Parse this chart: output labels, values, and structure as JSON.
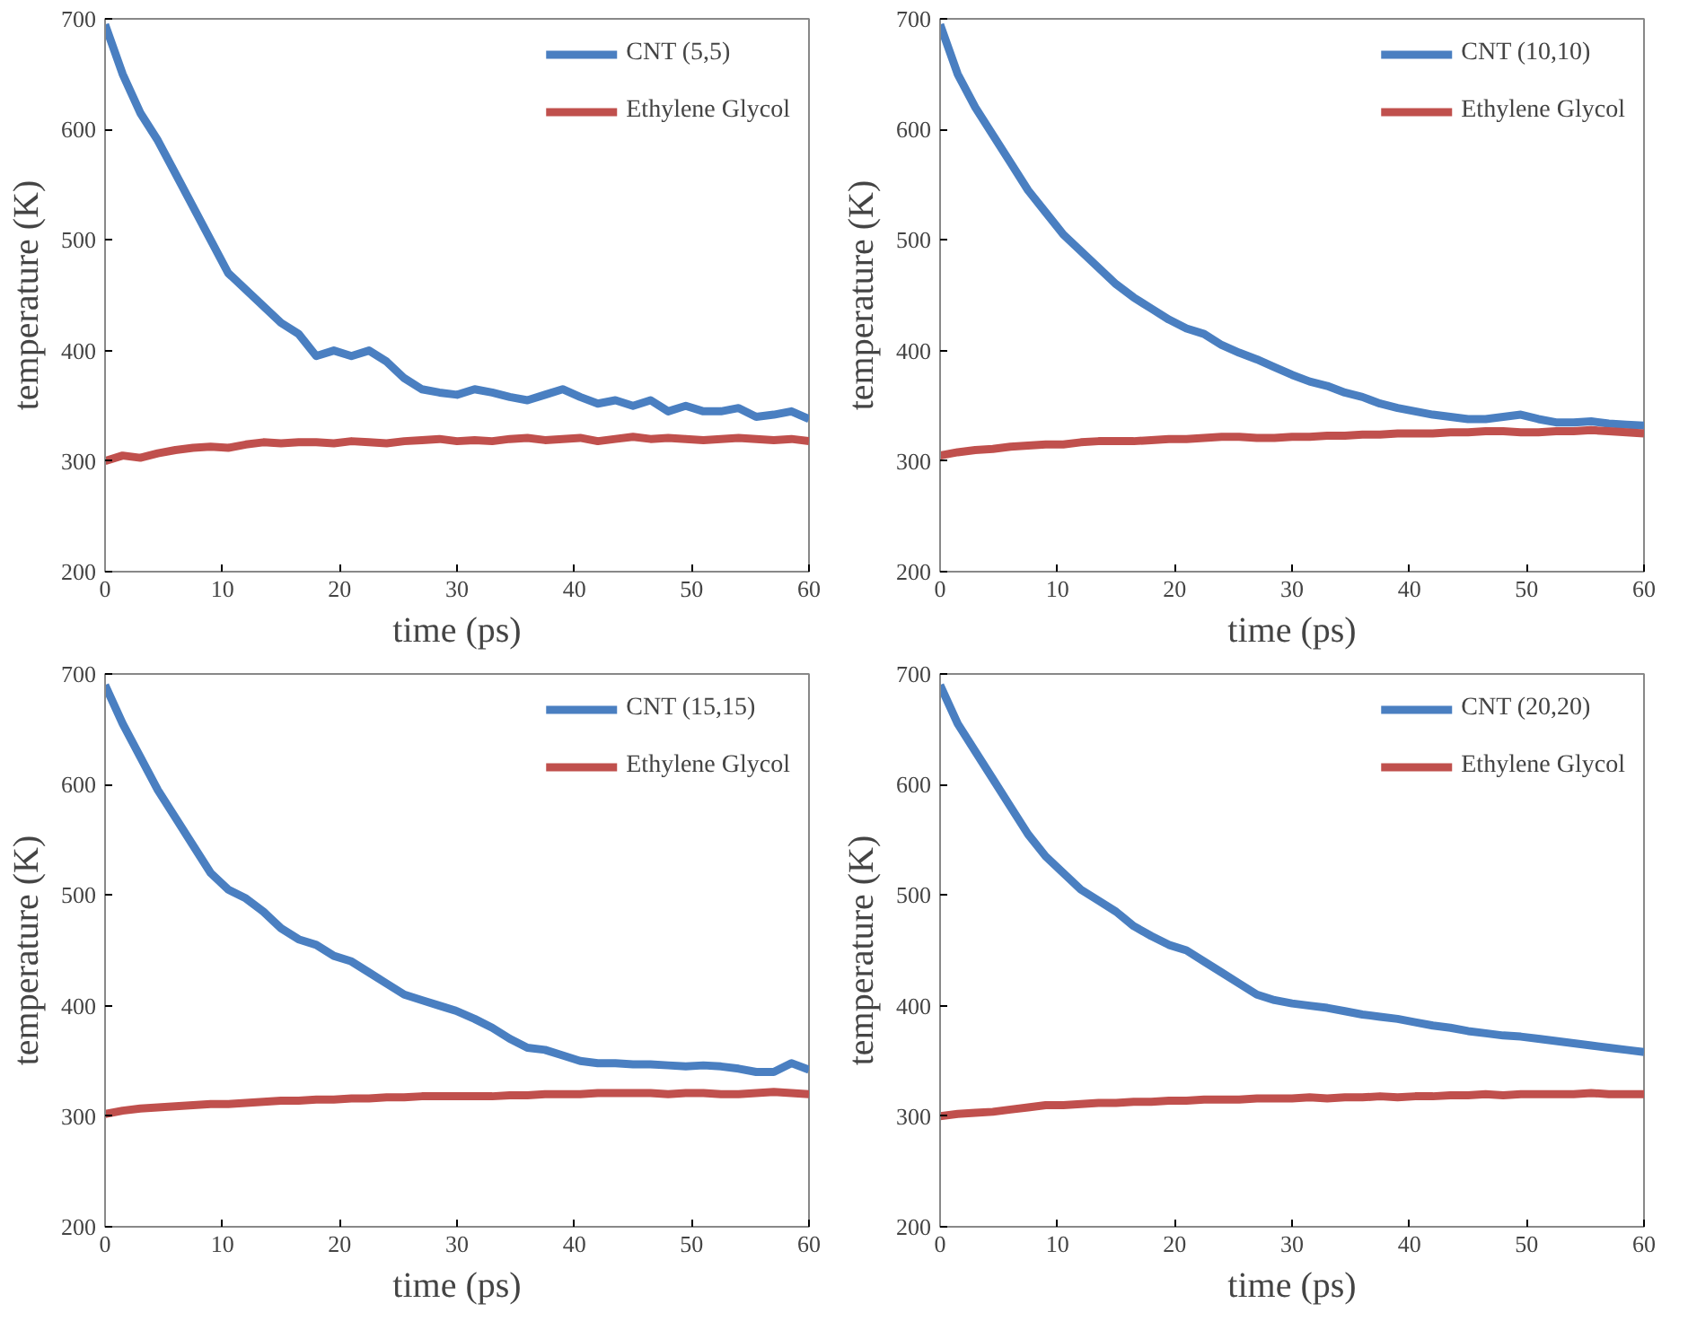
{
  "chart_data": [
    {
      "type": "line",
      "xlabel": "time (ps)",
      "ylabel": "temperature (K)",
      "xlim": [
        0,
        60
      ],
      "ylim": [
        200,
        700
      ],
      "xticks": [
        0,
        10,
        20,
        30,
        40,
        50,
        60
      ],
      "yticks": [
        200,
        300,
        400,
        500,
        600,
        700
      ],
      "grid": false,
      "legend": "top right",
      "marker": "none",
      "line_style": "solid",
      "x": [
        0,
        1.5,
        3,
        4.5,
        6,
        7.5,
        9,
        10.5,
        12,
        13.5,
        15,
        16.5,
        18,
        19.5,
        21,
        22.5,
        24,
        25.5,
        27,
        28.5,
        30,
        31.5,
        33,
        34.5,
        36,
        37.5,
        39,
        40.5,
        42,
        43.5,
        45,
        46.5,
        48,
        49.5,
        51,
        52.5,
        54,
        55.5,
        57,
        58.5,
        60
      ],
      "series": [
        {
          "name": "CNT (5,5)",
          "color": "#4a7fc1",
          "values": [
            695,
            650,
            615,
            590,
            560,
            530,
            500,
            470,
            455,
            440,
            425,
            415,
            395,
            400,
            395,
            400,
            390,
            375,
            365,
            362,
            360,
            365,
            362,
            358,
            355,
            360,
            365,
            358,
            352,
            355,
            350,
            355,
            345,
            350,
            345,
            345,
            348,
            340,
            342,
            345,
            338
          ]
        },
        {
          "name": "Ethylene Glycol",
          "color": "#c0504d",
          "values": [
            300,
            305,
            303,
            307,
            310,
            312,
            313,
            312,
            315,
            317,
            316,
            317,
            317,
            316,
            318,
            317,
            316,
            318,
            319,
            320,
            318,
            319,
            318,
            320,
            321,
            319,
            320,
            321,
            318,
            320,
            322,
            320,
            321,
            320,
            319,
            320,
            321,
            320,
            319,
            320,
            318
          ]
        }
      ]
    },
    {
      "type": "line",
      "xlabel": "time (ps)",
      "ylabel": "temperature (K)",
      "xlim": [
        0,
        60
      ],
      "ylim": [
        200,
        700
      ],
      "xticks": [
        0,
        10,
        20,
        30,
        40,
        50,
        60
      ],
      "yticks": [
        200,
        300,
        400,
        500,
        600,
        700
      ],
      "grid": false,
      "legend": "top right",
      "marker": "none",
      "line_style": "solid",
      "x": [
        0,
        1.5,
        3,
        4.5,
        6,
        7.5,
        9,
        10.5,
        12,
        13.5,
        15,
        16.5,
        18,
        19.5,
        21,
        22.5,
        24,
        25.5,
        27,
        28.5,
        30,
        31.5,
        33,
        34.5,
        36,
        37.5,
        39,
        40.5,
        42,
        43.5,
        45,
        46.5,
        48,
        49.5,
        51,
        52.5,
        54,
        55.5,
        57,
        58.5,
        60
      ],
      "series": [
        {
          "name": "CNT (10,10)",
          "color": "#4a7fc1",
          "values": [
            695,
            650,
            620,
            595,
            570,
            545,
            525,
            505,
            490,
            475,
            460,
            448,
            438,
            428,
            420,
            415,
            405,
            398,
            392,
            385,
            378,
            372,
            368,
            362,
            358,
            352,
            348,
            345,
            342,
            340,
            338,
            338,
            340,
            342,
            338,
            335,
            335,
            336,
            334,
            333,
            332
          ]
        },
        {
          "name": "Ethylene Glycol",
          "color": "#c0504d",
          "values": [
            305,
            308,
            310,
            311,
            313,
            314,
            315,
            315,
            317,
            318,
            318,
            318,
            319,
            320,
            320,
            321,
            322,
            322,
            321,
            321,
            322,
            322,
            323,
            323,
            324,
            324,
            325,
            325,
            325,
            326,
            326,
            327,
            327,
            326,
            326,
            327,
            327,
            328,
            327,
            326,
            325
          ]
        }
      ]
    },
    {
      "type": "line",
      "xlabel": "time (ps)",
      "ylabel": "temperature (K)",
      "xlim": [
        0,
        60
      ],
      "ylim": [
        200,
        700
      ],
      "xticks": [
        0,
        10,
        20,
        30,
        40,
        50,
        60
      ],
      "yticks": [
        200,
        300,
        400,
        500,
        600,
        700
      ],
      "grid": false,
      "legend": "top right",
      "marker": "none",
      "line_style": "solid",
      "x": [
        0,
        1.5,
        3,
        4.5,
        6,
        7.5,
        9,
        10.5,
        12,
        13.5,
        15,
        16.5,
        18,
        19.5,
        21,
        22.5,
        24,
        25.5,
        27,
        28.5,
        30,
        31.5,
        33,
        34.5,
        36,
        37.5,
        39,
        40.5,
        42,
        43.5,
        45,
        46.5,
        48,
        49.5,
        51,
        52.5,
        54,
        55.5,
        57,
        58.5,
        60
      ],
      "series": [
        {
          "name": "CNT (15,15)",
          "color": "#4a7fc1",
          "values": [
            690,
            655,
            625,
            595,
            570,
            545,
            520,
            505,
            497,
            485,
            470,
            460,
            455,
            445,
            440,
            430,
            420,
            410,
            405,
            400,
            395,
            388,
            380,
            370,
            362,
            360,
            355,
            350,
            348,
            348,
            347,
            347,
            346,
            345,
            346,
            345,
            343,
            340,
            340,
            348,
            342
          ]
        },
        {
          "name": "Ethylene Glycol",
          "color": "#c0504d",
          "values": [
            302,
            305,
            307,
            308,
            309,
            310,
            311,
            311,
            312,
            313,
            314,
            314,
            315,
            315,
            316,
            316,
            317,
            317,
            318,
            318,
            318,
            318,
            318,
            319,
            319,
            320,
            320,
            320,
            321,
            321,
            321,
            321,
            320,
            321,
            321,
            320,
            320,
            321,
            322,
            321,
            320
          ]
        }
      ]
    },
    {
      "type": "line",
      "xlabel": "time (ps)",
      "ylabel": "temperature (K)",
      "xlim": [
        0,
        60
      ],
      "ylim": [
        200,
        700
      ],
      "xticks": [
        0,
        10,
        20,
        30,
        40,
        50,
        60
      ],
      "yticks": [
        200,
        300,
        400,
        500,
        600,
        700
      ],
      "grid": false,
      "legend": "top right",
      "marker": "none",
      "line_style": "solid",
      "x": [
        0,
        1.5,
        3,
        4.5,
        6,
        7.5,
        9,
        10.5,
        12,
        13.5,
        15,
        16.5,
        18,
        19.5,
        21,
        22.5,
        24,
        25.5,
        27,
        28.5,
        30,
        31.5,
        33,
        34.5,
        36,
        37.5,
        39,
        40.5,
        42,
        43.5,
        45,
        46.5,
        48,
        49.5,
        51,
        52.5,
        54,
        55.5,
        57,
        58.5,
        60
      ],
      "series": [
        {
          "name": "CNT (20,20)",
          "color": "#4a7fc1",
          "values": [
            690,
            655,
            630,
            605,
            580,
            555,
            535,
            520,
            505,
            495,
            485,
            472,
            463,
            455,
            450,
            440,
            430,
            420,
            410,
            405,
            402,
            400,
            398,
            395,
            392,
            390,
            388,
            385,
            382,
            380,
            377,
            375,
            373,
            372,
            370,
            368,
            366,
            364,
            362,
            360,
            358
          ]
        },
        {
          "name": "Ethylene Glycol",
          "color": "#c0504d",
          "values": [
            300,
            302,
            303,
            304,
            306,
            308,
            310,
            310,
            311,
            312,
            312,
            313,
            313,
            314,
            314,
            315,
            315,
            315,
            316,
            316,
            316,
            317,
            316,
            317,
            317,
            318,
            317,
            318,
            318,
            319,
            319,
            320,
            319,
            320,
            320,
            320,
            320,
            321,
            320,
            320,
            320
          ]
        }
      ]
    }
  ]
}
